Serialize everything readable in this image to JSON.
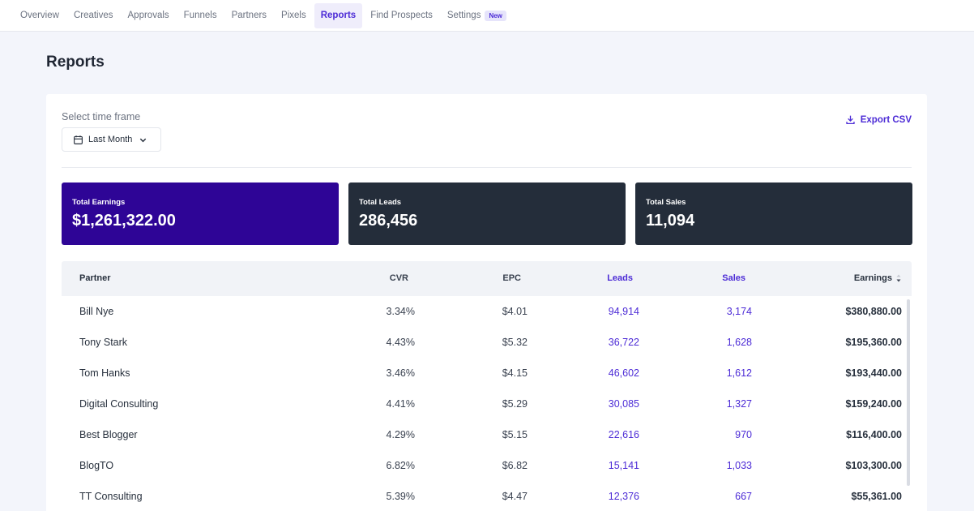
{
  "nav": {
    "items": [
      {
        "label": "Overview",
        "active": false
      },
      {
        "label": "Creatives",
        "active": false
      },
      {
        "label": "Approvals",
        "active": false
      },
      {
        "label": "Funnels",
        "active": false
      },
      {
        "label": "Partners",
        "active": false
      },
      {
        "label": "Pixels",
        "active": false
      },
      {
        "label": "Reports",
        "active": true
      },
      {
        "label": "Find Prospects",
        "active": false
      },
      {
        "label": "Settings",
        "active": false
      }
    ],
    "settings_badge": "New"
  },
  "page": {
    "title": "Reports"
  },
  "timeframe": {
    "label": "Select time frame",
    "selected": "Last Month",
    "icon": "calendar-icon"
  },
  "export": {
    "label": "Export CSV",
    "icon": "download-icon"
  },
  "stats": [
    {
      "label": "Total Earnings",
      "value": "$1,261,322.00",
      "color": "#2e0596"
    },
    {
      "label": "Total Leads",
      "value": "286,456",
      "color": "#242d3a"
    },
    {
      "label": "Total Sales",
      "value": "11,094",
      "color": "#242d3a"
    }
  ],
  "table": {
    "headers": {
      "partner": "Partner",
      "cvr": "CVR",
      "epc": "EPC",
      "leads": "Leads",
      "sales": "Sales",
      "earnings": "Earnings"
    },
    "sort_icon": "sort-icon",
    "rows": [
      {
        "partner": "Bill Nye",
        "cvr": "3.34%",
        "epc": "$4.01",
        "leads": "94,914",
        "sales": "3,174",
        "earnings": "$380,880.00"
      },
      {
        "partner": "Tony Stark",
        "cvr": "4.43%",
        "epc": "$5.32",
        "leads": "36,722",
        "sales": "1,628",
        "earnings": "$195,360.00"
      },
      {
        "partner": "Tom Hanks",
        "cvr": "3.46%",
        "epc": "$4.15",
        "leads": "46,602",
        "sales": "1,612",
        "earnings": "$193,440.00"
      },
      {
        "partner": "Digital Consulting",
        "cvr": "4.41%",
        "epc": "$5.29",
        "leads": "30,085",
        "sales": "1,327",
        "earnings": "$159,240.00"
      },
      {
        "partner": "Best Blogger",
        "cvr": "4.29%",
        "epc": "$5.15",
        "leads": "22,616",
        "sales": "970",
        "earnings": "$116,400.00"
      },
      {
        "partner": "BlogTO",
        "cvr": "6.82%",
        "epc": "$6.82",
        "leads": "15,141",
        "sales": "1,033",
        "earnings": "$103,300.00"
      },
      {
        "partner": "TT Consulting",
        "cvr": "5.39%",
        "epc": "$4.47",
        "leads": "12,376",
        "sales": "667",
        "earnings": "$55,361.00"
      }
    ]
  },
  "colors": {
    "accent": "#4c2bd6",
    "earnings_card": "#2e0596",
    "dark_card": "#242d3a",
    "page_bg": "#f3f5fb"
  }
}
